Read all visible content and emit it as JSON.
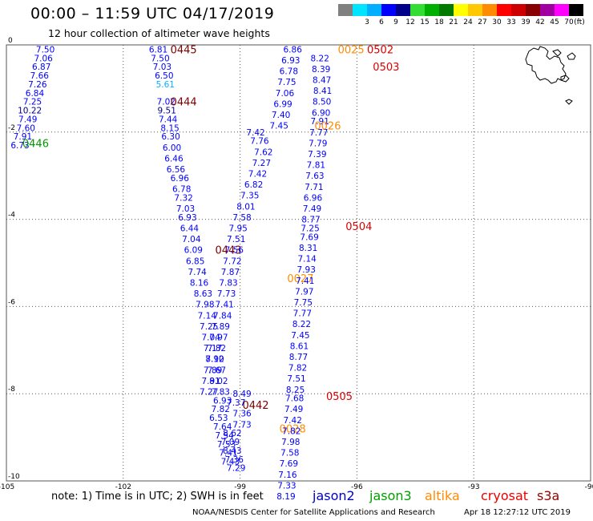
{
  "header": {
    "title": "00:00 – 11:59 UTC 04/17/2019",
    "subtitle": "12 hour collection of altimeter wave heights"
  },
  "color_scale": {
    "unit": "(ft)",
    "bins": [
      {
        "label": "",
        "color": "#808080"
      },
      {
        "label": "3",
        "color": "#00e5ff"
      },
      {
        "label": "6",
        "color": "#00b0ff"
      },
      {
        "label": "9",
        "color": "#0000ff"
      },
      {
        "label": "12",
        "color": "#00008b"
      },
      {
        "label": "15",
        "color": "#33dd33"
      },
      {
        "label": "18",
        "color": "#00b000"
      },
      {
        "label": "21",
        "color": "#007a00"
      },
      {
        "label": "24",
        "color": "#ffff00"
      },
      {
        "label": "27",
        "color": "#ffc800"
      },
      {
        "label": "30",
        "color": "#ff8c00"
      },
      {
        "label": "33",
        "color": "#ff0000"
      },
      {
        "label": "39",
        "color": "#cc0000"
      },
      {
        "label": "42",
        "color": "#880000"
      },
      {
        "label": "45",
        "color": "#a000a0"
      },
      {
        "label": "70",
        "color": "#ff00ff"
      },
      {
        "label": "",
        "color": "#000000"
      }
    ]
  },
  "footer": {
    "note": "note: 1) Time is in UTC; 2) SWH is in feet",
    "credit": "NOAA/NESDIS Center for Satellite Applications and Research",
    "generated": "Apr 18 12:27:12 UTC 2019",
    "legend": [
      {
        "label": "jason2",
        "color": "#0000cc"
      },
      {
        "label": "jason3",
        "color": "#00a000"
      },
      {
        "label": "altika",
        "color": "#ff8c00"
      },
      {
        "label": "cryosat",
        "color": "#ee0000"
      },
      {
        "label": "s3a",
        "color": "#990000"
      }
    ]
  },
  "chart_data": {
    "type": "scatter",
    "title": "00:00 – 11:59 UTC 04/17/2019",
    "xlim": [
      -105,
      -90
    ],
    "ylim": [
      -10,
      0
    ],
    "xticks": [
      "-105",
      "-102",
      "-99",
      "-96",
      "-93",
      "-90"
    ],
    "yticks": [
      "0",
      "-2",
      "-4",
      "-6",
      "-8",
      "-10"
    ],
    "grid": true,
    "tracks": [
      {
        "satellite": "jason3",
        "pass_label": "0446",
        "pass_at": [
          -104.25,
          -2.25
        ],
        "points": [
          {
            "x": -104.0,
            "y": -0.1,
            "v": "7.50"
          },
          {
            "x": -104.05,
            "y": -0.3,
            "v": "7.06"
          },
          {
            "x": -104.1,
            "y": -0.5,
            "v": "6.87"
          },
          {
            "x": -104.15,
            "y": -0.7,
            "v": "7.66"
          },
          {
            "x": -104.2,
            "y": -0.9,
            "v": "7.26"
          },
          {
            "x": -104.27,
            "y": -1.1,
            "v": "6.84"
          },
          {
            "x": -104.33,
            "y": -1.3,
            "v": "7.25"
          },
          {
            "x": -104.4,
            "y": -1.5,
            "v": "10.22"
          },
          {
            "x": -104.45,
            "y": -1.7,
            "v": "7.49"
          },
          {
            "x": -104.5,
            "y": -1.9,
            "v": "7.60"
          },
          {
            "x": -104.58,
            "y": -2.1,
            "v": "7.91"
          },
          {
            "x": -104.65,
            "y": -2.3,
            "v": "6.73"
          }
        ]
      },
      {
        "satellite": "s3a",
        "pass_label": "0445",
        "pass_at": [
          -100.45,
          -0.1
        ],
        "points": [
          {
            "x": -101.1,
            "y": -0.1,
            "v": "6.81"
          },
          {
            "x": -101.05,
            "y": -0.3,
            "v": "7.50"
          },
          {
            "x": -101.0,
            "y": -0.5,
            "v": "7.03"
          },
          {
            "x": -100.95,
            "y": -0.7,
            "v": "6.50"
          },
          {
            "x": -100.92,
            "y": -0.9,
            "v": "5.61"
          }
        ]
      },
      {
        "satellite": "s3a",
        "pass_label": "0444",
        "pass_at": [
          -100.45,
          -1.3
        ],
        "points": [
          {
            "x": -100.9,
            "y": -1.3,
            "v": "7.02"
          },
          {
            "x": -100.88,
            "y": -1.5,
            "v": "9.51"
          },
          {
            "x": -100.85,
            "y": -1.7,
            "v": "7.44"
          },
          {
            "x": -100.8,
            "y": -1.9,
            "v": "8.15"
          },
          {
            "x": -100.78,
            "y": -2.1,
            "v": "6.30"
          },
          {
            "x": -100.75,
            "y": -2.35,
            "v": "6.00"
          },
          {
            "x": -100.7,
            "y": -2.6,
            "v": "6.46"
          },
          {
            "x": -100.65,
            "y": -2.85,
            "v": "6.56"
          },
          {
            "x": -100.55,
            "y": -3.05,
            "v": "6.96"
          },
          {
            "x": -100.5,
            "y": -3.3,
            "v": "6.78"
          },
          {
            "x": -100.45,
            "y": -3.5,
            "v": "7.32"
          },
          {
            "x": -100.4,
            "y": -3.75,
            "v": "7.03"
          },
          {
            "x": -100.35,
            "y": -3.95,
            "v": "6.93"
          },
          {
            "x": -100.3,
            "y": -4.2,
            "v": "6.44"
          },
          {
            "x": -100.25,
            "y": -4.45,
            "v": "7.04"
          },
          {
            "x": -100.2,
            "y": -4.7,
            "v": "6.09"
          }
        ]
      },
      {
        "satellite": "s3a",
        "pass_label": "0443",
        "pass_at": [
          -99.3,
          -4.7
        ],
        "points": [
          {
            "x": -100.15,
            "y": -4.95,
            "v": "6.85"
          },
          {
            "x": -100.1,
            "y": -5.2,
            "v": "7.74"
          },
          {
            "x": -100.05,
            "y": -5.45,
            "v": "8.16"
          },
          {
            "x": -99.95,
            "y": -5.7,
            "v": "8.63"
          },
          {
            "x": -99.9,
            "y": -5.95,
            "v": "7.98"
          },
          {
            "x": -99.85,
            "y": -6.2,
            "v": "7.14"
          },
          {
            "x": -99.8,
            "y": -6.45,
            "v": "7.25"
          },
          {
            "x": -99.75,
            "y": -6.7,
            "v": "7.04"
          },
          {
            "x": -99.7,
            "y": -6.95,
            "v": "7.17"
          },
          {
            "x": -99.65,
            "y": -7.2,
            "v": "7.92"
          },
          {
            "x": -99.6,
            "y": -7.45,
            "v": "7.67"
          },
          {
            "x": -99.55,
            "y": -7.7,
            "v": "8.02"
          },
          {
            "x": -99.5,
            "y": -7.95,
            "v": "7.83"
          },
          {
            "x": -99.45,
            "y": -8.15,
            "v": "6.93"
          },
          {
            "x": -99.5,
            "y": -8.35,
            "v": "7.82"
          },
          {
            "x": -99.55,
            "y": -8.55,
            "v": "6.53"
          },
          {
            "x": -99.45,
            "y": -8.75,
            "v": "7.64"
          },
          {
            "x": -99.4,
            "y": -8.95,
            "v": "7.54"
          },
          {
            "x": -99.35,
            "y": -9.15,
            "v": "7.53"
          },
          {
            "x": -99.3,
            "y": -9.35,
            "v": "7.41"
          },
          {
            "x": -99.25,
            "y": -9.55,
            "v": "7.43"
          }
        ]
      },
      {
        "satellite": "s3a",
        "pass_label": "0442",
        "pass_at": [
          -98.6,
          -8.25
        ],
        "points": [
          {
            "x": -99.1,
            "y": -8.2,
            "v": "7.37"
          },
          {
            "x": -98.95,
            "y": -8.0,
            "v": "8.49"
          },
          {
            "x": -98.95,
            "y": -8.45,
            "v": "7.36"
          },
          {
            "x": -98.95,
            "y": -8.7,
            "v": "7.73"
          },
          {
            "x": -99.2,
            "y": -8.9,
            "v": "8.62"
          },
          {
            "x": -99.25,
            "y": -9.1,
            "v": "7.09"
          },
          {
            "x": -99.2,
            "y": -9.3,
            "v": "8.43"
          },
          {
            "x": -99.15,
            "y": -9.5,
            "v": "7.36"
          },
          {
            "x": -99.1,
            "y": -9.7,
            "v": "7.29"
          }
        ]
      },
      {
        "satellite": "altika",
        "pass_label": "0028",
        "pass_at": [
          -97.65,
          -8.8
        ],
        "points": [
          {
            "x": -98.6,
            "y": -2.0,
            "v": "7.42"
          },
          {
            "x": -98.5,
            "y": -2.2,
            "v": "7.76"
          },
          {
            "x": -98.4,
            "y": -2.45,
            "v": "7.62"
          },
          {
            "x": -98.45,
            "y": -2.7,
            "v": "7.27"
          },
          {
            "x": -98.55,
            "y": -2.95,
            "v": "7.42"
          },
          {
            "x": -98.65,
            "y": -3.2,
            "v": "6.82"
          },
          {
            "x": -98.75,
            "y": -3.45,
            "v": "7.35"
          },
          {
            "x": -98.85,
            "y": -3.7,
            "v": "8.01"
          },
          {
            "x": -98.95,
            "y": -3.95,
            "v": "7.58"
          },
          {
            "x": -99.05,
            "y": -4.2,
            "v": "7.95"
          },
          {
            "x": -99.1,
            "y": -4.45,
            "v": "7.51"
          },
          {
            "x": -99.15,
            "y": -4.7,
            "v": "7.56"
          },
          {
            "x": -99.2,
            "y": -4.95,
            "v": "7.72"
          },
          {
            "x": -99.25,
            "y": -5.2,
            "v": "7.87"
          },
          {
            "x": -99.3,
            "y": -5.45,
            "v": "7.83"
          },
          {
            "x": -99.35,
            "y": -5.7,
            "v": "7.73"
          },
          {
            "x": -99.4,
            "y": -5.95,
            "v": "7.41"
          },
          {
            "x": -99.45,
            "y": -6.2,
            "v": "7.84"
          },
          {
            "x": -99.5,
            "y": -6.45,
            "v": "7.89"
          },
          {
            "x": -99.55,
            "y": -6.7,
            "v": "7.97"
          },
          {
            "x": -99.6,
            "y": -6.95,
            "v": "7.82"
          },
          {
            "x": -99.65,
            "y": -7.2,
            "v": "8.10"
          },
          {
            "x": -99.7,
            "y": -7.45,
            "v": "7.89"
          },
          {
            "x": -99.75,
            "y": -7.7,
            "v": "7.91"
          },
          {
            "x": -99.8,
            "y": -7.95,
            "v": "7.27"
          }
        ]
      },
      {
        "satellite": "altika",
        "pass_label": "0027",
        "pass_at": [
          -97.45,
          -5.35
        ],
        "points": [
          {
            "x": -97.65,
            "y": -0.1,
            "v": "6.86"
          },
          {
            "x": -97.7,
            "y": -0.35,
            "v": "6.93"
          },
          {
            "x": -97.75,
            "y": -0.6,
            "v": "6.78"
          },
          {
            "x": -97.8,
            "y": -0.85,
            "v": "7.75"
          },
          {
            "x": -97.85,
            "y": -1.1,
            "v": "7.06"
          },
          {
            "x": -97.9,
            "y": -1.35,
            "v": "6.99"
          },
          {
            "x": -97.95,
            "y": -1.6,
            "v": "7.40"
          },
          {
            "x": -98.0,
            "y": -1.85,
            "v": "7.45"
          }
        ]
      },
      {
        "satellite": "altika",
        "pass_label": "0026",
        "pass_at": [
          -96.75,
          -1.85
        ],
        "points": [
          {
            "x": -96.95,
            "y": -0.3,
            "v": "8.22"
          },
          {
            "x": -96.92,
            "y": -0.55,
            "v": "8.39"
          },
          {
            "x": -96.9,
            "y": -0.8,
            "v": "8.47"
          },
          {
            "x": -96.88,
            "y": -1.05,
            "v": "8.41"
          },
          {
            "x": -96.9,
            "y": -1.3,
            "v": "8.50"
          },
          {
            "x": -96.92,
            "y": -1.55,
            "v": "6.90"
          },
          {
            "x": -96.95,
            "y": -1.75,
            "v": "7.91"
          },
          {
            "x": -96.98,
            "y": -2.0,
            "v": "7.77"
          },
          {
            "x": -97.0,
            "y": -2.25,
            "v": "7.79"
          },
          {
            "x": -97.02,
            "y": -2.5,
            "v": "7.39"
          }
        ]
      },
      {
        "satellite": "cryosat",
        "pass_label": "0504",
        "pass_at": [
          -95.95,
          -4.15
        ],
        "points": [
          {
            "x": -97.05,
            "y": -2.75,
            "v": "7.81"
          },
          {
            "x": -97.08,
            "y": -3.0,
            "v": "7.63"
          },
          {
            "x": -97.1,
            "y": -3.25,
            "v": "7.71"
          },
          {
            "x": -97.13,
            "y": -3.5,
            "v": "6.96"
          },
          {
            "x": -97.15,
            "y": -3.75,
            "v": "7.49"
          },
          {
            "x": -97.18,
            "y": -4.0,
            "v": "8.77"
          },
          {
            "x": -97.2,
            "y": -4.2,
            "v": "7.25"
          },
          {
            "x": -97.22,
            "y": -4.4,
            "v": "7.69"
          },
          {
            "x": -97.25,
            "y": -4.65,
            "v": "8.31"
          },
          {
            "x": -97.28,
            "y": -4.9,
            "v": "7.14"
          },
          {
            "x": -97.3,
            "y": -5.15,
            "v": "7.93"
          },
          {
            "x": -97.33,
            "y": -5.4,
            "v": "7.41"
          },
          {
            "x": -97.35,
            "y": -5.65,
            "v": "7.97"
          },
          {
            "x": -97.38,
            "y": -5.9,
            "v": "7.75"
          }
        ]
      },
      {
        "satellite": "cryosat",
        "pass_label": "0505",
        "pass_at": [
          -96.45,
          -8.05
        ],
        "points": [
          {
            "x": -97.4,
            "y": -6.15,
            "v": "7.77"
          },
          {
            "x": -97.42,
            "y": -6.4,
            "v": "8.22"
          },
          {
            "x": -97.45,
            "y": -6.65,
            "v": "7.45"
          },
          {
            "x": -97.48,
            "y": -6.9,
            "v": "8.61"
          },
          {
            "x": -97.5,
            "y": -7.15,
            "v": "8.77"
          },
          {
            "x": -97.52,
            "y": -7.4,
            "v": "7.82"
          },
          {
            "x": -97.55,
            "y": -7.65,
            "v": "7.51"
          },
          {
            "x": -97.58,
            "y": -7.9,
            "v": "8.25"
          },
          {
            "x": -97.6,
            "y": -8.1,
            "v": "7.68"
          },
          {
            "x": -97.62,
            "y": -8.35,
            "v": "7.49"
          },
          {
            "x": -97.65,
            "y": -8.6,
            "v": "7.42"
          },
          {
            "x": -97.68,
            "y": -8.85,
            "v": "7.82"
          },
          {
            "x": -97.7,
            "y": -9.1,
            "v": "7.98"
          },
          {
            "x": -97.72,
            "y": -9.35,
            "v": "7.58"
          },
          {
            "x": -97.75,
            "y": -9.6,
            "v": "7.69"
          },
          {
            "x": -97.78,
            "y": -9.85,
            "v": "7.16"
          },
          {
            "x": -97.8,
            "y": -10.1,
            "v": "7.33"
          },
          {
            "x": -97.82,
            "y": -10.35,
            "v": "8.19"
          }
        ]
      },
      {
        "satellite": "cryosat",
        "pass_label": "0503",
        "pass_at": [
          -95.25,
          -0.5
        ],
        "points": []
      },
      {
        "satellite": "cryosat",
        "pass_label": "0502",
        "pass_at": [
          -95.4,
          -0.1
        ],
        "points": []
      },
      {
        "satellite": "altika",
        "pass_label": "0025",
        "pass_at": [
          -96.15,
          -0.1
        ],
        "points": []
      }
    ]
  }
}
